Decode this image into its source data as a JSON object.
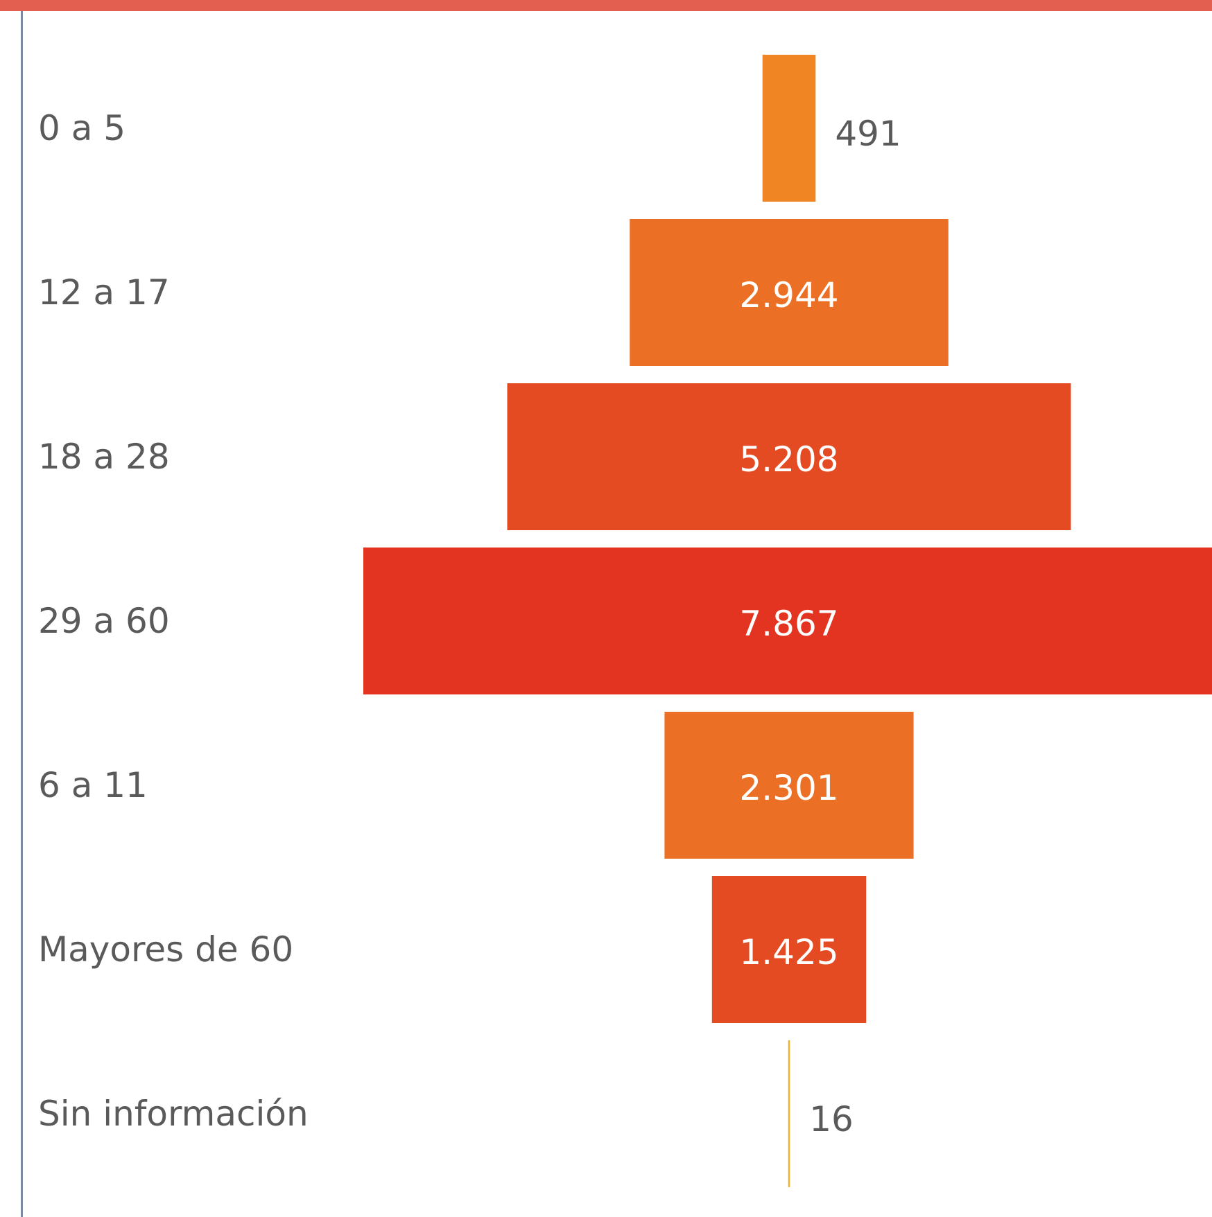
{
  "chart_data": {
    "type": "funnel",
    "categories": [
      "0 a 5",
      "12 a 17",
      "18 a 28",
      "29 a 60",
      "6 a 11",
      "Mayores de 60",
      "Sin información"
    ],
    "values": [
      491,
      2944,
      5208,
      7867,
      2301,
      1425,
      16
    ],
    "value_labels": [
      "491",
      "2.944",
      "5.208",
      "7.867",
      "2.301",
      "1.425",
      "16"
    ],
    "colors": [
      "#ef8523",
      "#eb7026",
      "#e54b22",
      "#e23420",
      "#eb7026",
      "#e54b22",
      "#f0b429"
    ],
    "inside_label_color": "#ffffff",
    "outside_label_color": "#5a5a5a",
    "frame_color": "#e35f4f",
    "axis_line_color": "#7d8aa3"
  }
}
